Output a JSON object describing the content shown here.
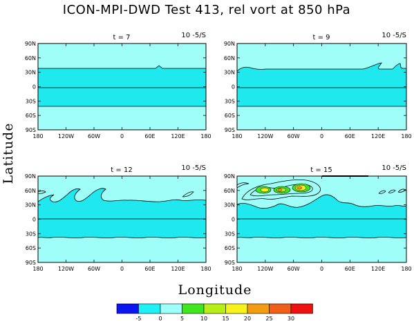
{
  "figure": {
    "title": "ICON-MPI-DWD Test 413, rel vort at 850 hPa",
    "ylabel": "Latitude",
    "xlabel": "Longitude"
  },
  "colors": {
    "background_fill": "#9ffff8",
    "band_fill": "#1fe8ee",
    "low_fill": "#0015f5",
    "level_10": "#3fe61e",
    "level_15": "#b8ee18",
    "level_20": "#f6f21a",
    "level_25": "#f29c11",
    "level_30": "#f0601a",
    "high_fill": "#ee1111"
  },
  "colorbar": {
    "labels": [
      "-5",
      "0",
      "5",
      "10",
      "15",
      "20",
      "25",
      "30"
    ],
    "colors": [
      "#0b15f0",
      "#1ff0f6",
      "#9ffffb",
      "#3fe61e",
      "#b8ee18",
      "#f6f21a",
      "#f29c11",
      "#f0601a",
      "#ee1111"
    ]
  },
  "chart_data": {
    "type": "contour",
    "panels": [
      {
        "time_label": "t = 7",
        "units": "10 -5/S",
        "min_vorticity": -5,
        "max_vorticity": 5,
        "jet_waviness": 0
      },
      {
        "time_label": "t = 9",
        "units": "10 -5/S",
        "min_vorticity": -5,
        "max_vorticity": 5,
        "jet_waviness": 1
      },
      {
        "time_label": "t = 12",
        "units": "10 -5/S",
        "min_vorticity": -5,
        "max_vorticity": 5,
        "jet_waviness": 2
      },
      {
        "time_label": "t = 15",
        "units": "10 -5/S",
        "min_vorticity": -5,
        "max_vorticity": 30,
        "jet_waviness": 3
      }
    ],
    "x_axis": {
      "range": [
        -180,
        180
      ],
      "ticks": [
        "180",
        "120W",
        "60W",
        "0",
        "60E",
        "120E",
        "180"
      ]
    },
    "y_axis": {
      "range": [
        -90,
        90
      ],
      "ticks": [
        "90N",
        "60N",
        "30N",
        "0",
        "30S",
        "60S",
        "90S"
      ]
    }
  }
}
